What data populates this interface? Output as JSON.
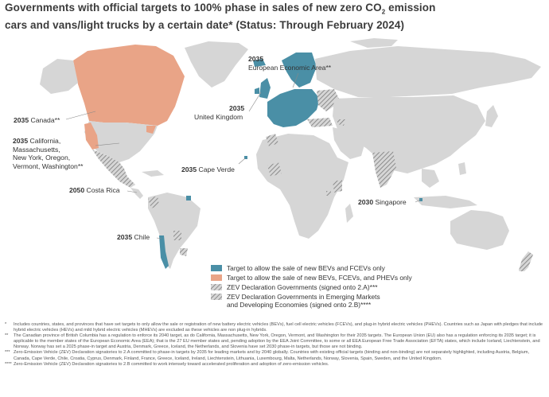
{
  "title": {
    "part1": "Governments with official targets to 100% phase in sales of new zero CO",
    "sub": "2",
    "part2": " emission",
    "line2": "cars and vans/light trucks by a certain date* (Status: Through February 2024)"
  },
  "colors": {
    "bev_only": "#4a8fa6",
    "bev_phev": "#e9a487",
    "land": "#d6d6d6",
    "hatch": "#7a7a7a"
  },
  "labels": {
    "eea": {
      "year": "2035",
      "name": "European Economic Area**"
    },
    "uk": {
      "year": "2035",
      "name": "United Kingdom"
    },
    "canada": {
      "year": "2035",
      "name": "Canada**"
    },
    "california": {
      "year": "2035",
      "name": "California,",
      "l2": "Massachusetts,",
      "l3": "New York, Oregon,",
      "l4": "Vermont, Washington**"
    },
    "cape_verde": {
      "year": "2035",
      "name": "Cape Verde"
    },
    "costa_rica": {
      "year": "2050",
      "name": "Costa Rica"
    },
    "singapore": {
      "year": "2030",
      "name": "Singapore"
    },
    "chile": {
      "year": "2035",
      "name": "Chile"
    }
  },
  "legend": {
    "bev_only": "Target to allow the sale of new BEVs and FCEVs only",
    "bev_phev": "Target to allow the sale of new BEVs, FCEVs, and PHEVs only",
    "zev_a": "ZEV Declaration Governments (signed onto 2.A)***",
    "zev_b1": "ZEV Declaration Governments in Emerging Markets",
    "zev_b2": "and Developing Economies (signed onto 2.B)****"
  },
  "footnotes": [
    {
      "mark": "*",
      "text": "Includes countries, states, and provinces that have set targets to only allow the sale or registration of new battery electric vehicles (BEVs), fuel cell electric vehicles (FCEVs), and plug-in hybrid electric vehicles (PHEVs). Countries such as Japan with pledges that include hybrid electric vehicles (HEVs) and mild hybrid electric vehicles (MHEVs) are excluded as these vehicles are non plug-in hybrids."
    },
    {
      "mark": "**",
      "text": "The Canadian province of British Columbia has a regulation to enforce its 2040 target, as do California, Massachusetts, New York, Oregon, Vermont, and Washington for their 2035 targets. The European Union (EU) also has a regulation enforcing its 2035 target; it is applicable to the member states of the European Economic Area (EEA); that is the 27 EU member states and, pending adoption by the EEA Joint Committee, to some or all EEA European Free Trade Association (EFTA) states, which include Iceland, Liechtenstein, and Norway. Norway has set a 2025 phase-in target and Austria, Denmark, Greece, Iceland, the Netherlands, and Slovenia have set 2030 phase-in targets, but those are not binding."
    },
    {
      "mark": "***",
      "text": "Zero-Emission Vehicle (ZEV) Declaration signatories to 2.A committed to phase-in targets by 2035 for leading markets and by 2040 globally. Countries with existing official targets (binding and non-binding) are not separately highlighted, including Austria, Belgium, Canada, Cape Verde, Chile, Croatia, Cyprus, Denmark, Finland, France, Greece, Iceland, Ireland, Liechtenstein, Lithuania, Luxembourg, Malta, Netherlands, Norway, Slovenia, Spain, Sweden, and the United Kingdom."
    },
    {
      "mark": "****",
      "text": "Zero-Emission Vehicle (ZEV) Declaration signatories to 2.B committed to work intensely toward accelerated proliferation and adoption of zero-emission vehicles."
    }
  ]
}
